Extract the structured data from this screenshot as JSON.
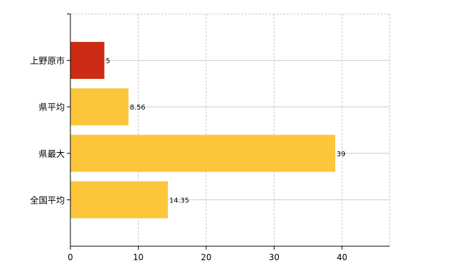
{
  "chart_data": {
    "type": "bar",
    "orientation": "horizontal",
    "categories": [
      "上野原市",
      "県平均",
      "県最大",
      "全国平均"
    ],
    "values": [
      5,
      8.56,
      39,
      14.35
    ],
    "value_labels": [
      "5",
      "8.56",
      "39",
      "14.35"
    ],
    "colors": [
      "#cc2a14",
      "#fcc63a",
      "#fcc63a",
      "#fcc63a"
    ],
    "xlim": [
      0,
      47
    ],
    "xticks": [
      0,
      10,
      20,
      30,
      40
    ],
    "grid": true,
    "title": "",
    "xlabel": "",
    "ylabel": ""
  }
}
